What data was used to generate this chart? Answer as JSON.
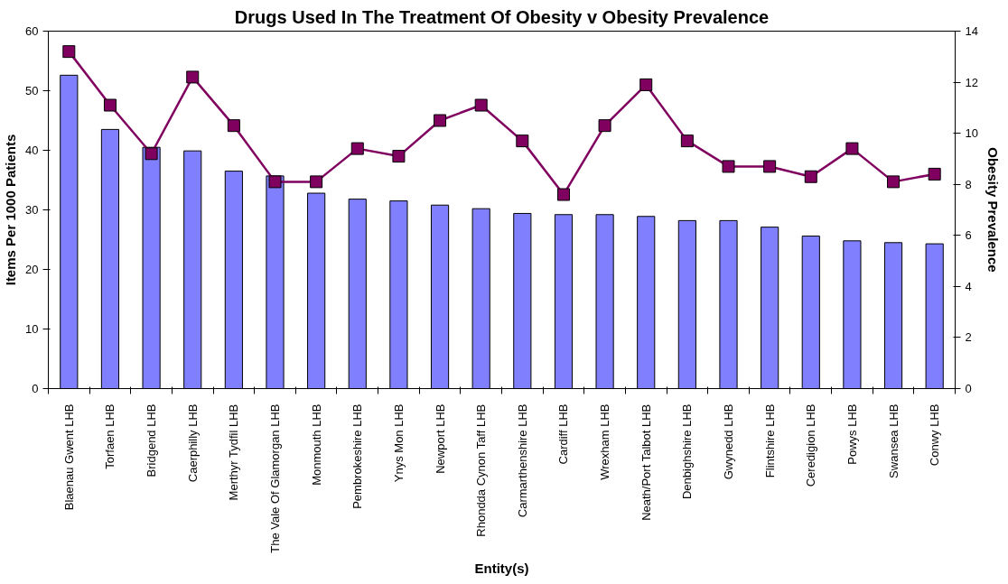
{
  "chart_data": {
    "type": "bar",
    "title": "Drugs Used In The Treatment Of Obesity v Obesity Prevalence",
    "xlabel": "Entity(s)",
    "ylabel": "Items Per 1000 Patients",
    "y2label": "Obesity Prevalence",
    "categories": [
      "Blaenau Gwent LHB",
      "Torfaen LHB",
      "Bridgend LHB",
      "Caerphilly LHB",
      "Merthyr Tydfil LHB",
      "The Vale Of Glamorgan LHB",
      "Monmouth LHB",
      "Pembrokeshire LHB",
      "Ynys Mon LHB",
      "Newport LHB",
      "Rhondda Cynon Taff LHB",
      "Carmarthenshire LHB",
      "Cardiff LHB",
      "Wrexham LHB",
      "Neath/Port Talbot LHB",
      "Denbighshire LHB",
      "Gwynedd LHB",
      "Flintshire LHB",
      "Ceredigion LHB",
      "Powys LHB",
      "Swansea LHB",
      "Conwy LHB"
    ],
    "series": [
      {
        "color": "#8080ff",
        "values": [
          52.6,
          43.5,
          40.5,
          39.9,
          36.5,
          35.7,
          32.8,
          31.8,
          31.5,
          30.8,
          30.2,
          29.4,
          29.2,
          29.2,
          28.9,
          28.2,
          28.2,
          27.1,
          25.6,
          24.8,
          24.5,
          24.3
        ]
      },
      {
        "type": "line",
        "axis": "y2",
        "color": "#800060",
        "marker": "square",
        "values": [
          13.2,
          11.1,
          9.2,
          12.2,
          10.3,
          8.1,
          8.1,
          9.4,
          9.1,
          10.5,
          11.1,
          9.7,
          7.6,
          10.3,
          11.9,
          9.7,
          8.7,
          8.7,
          8.3,
          9.4,
          8.1,
          8.4
        ]
      }
    ],
    "ylim": [
      0,
      60
    ],
    "yticks": [
      0,
      10,
      20,
      30,
      40,
      50,
      60
    ],
    "y2lim": [
      0,
      14
    ],
    "y2ticks": [
      0,
      2,
      4,
      6,
      8,
      10,
      12,
      14
    ],
    "grid": false
  }
}
